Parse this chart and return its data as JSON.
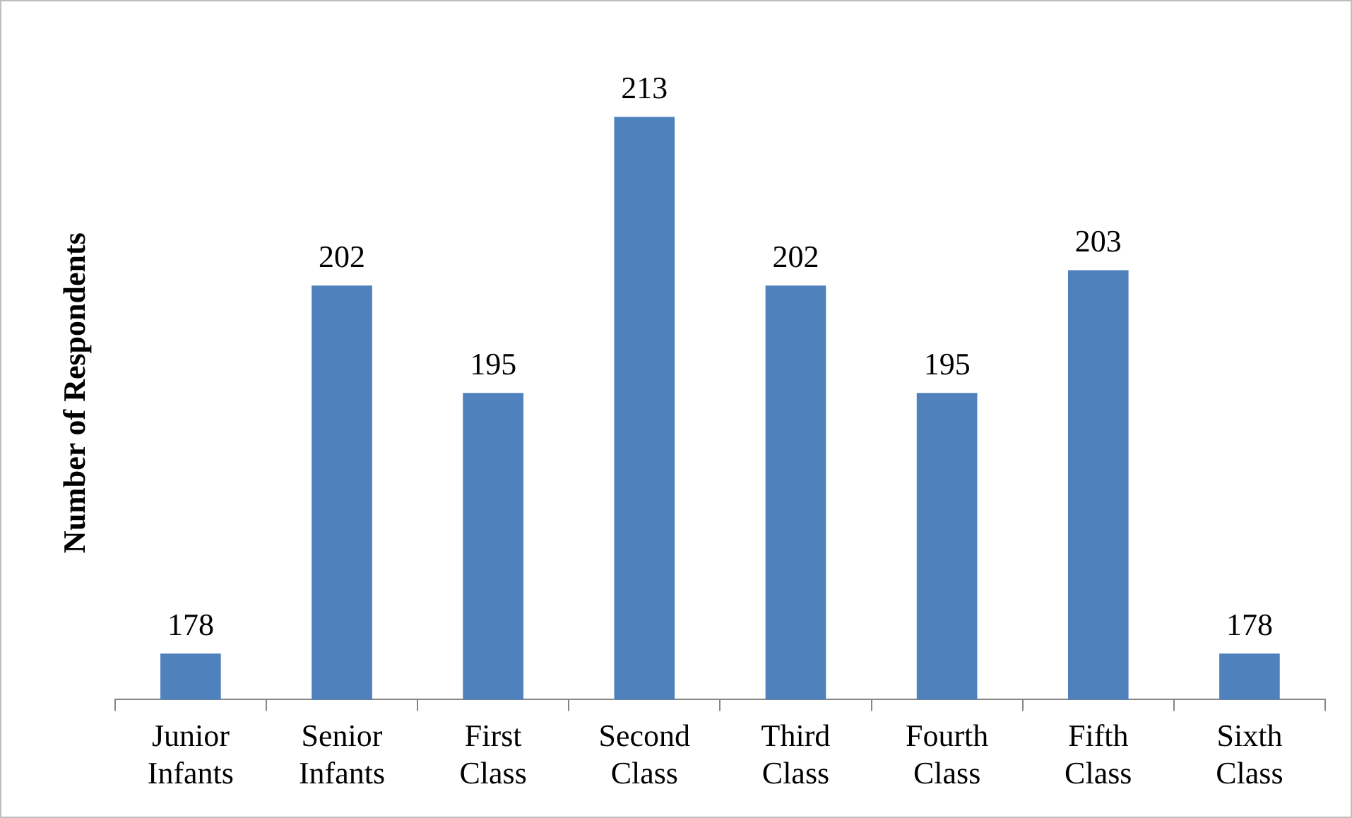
{
  "chart_data": {
    "type": "bar",
    "ylabel": "Number of Respondents",
    "categories": [
      "Junior Infants",
      "Senior Infants",
      "First Class",
      "Second Class",
      "Third Class",
      "Fourth Class",
      "Fifth Class",
      "Sixth Class"
    ],
    "values": [
      178,
      202,
      195,
      213,
      202,
      195,
      203,
      178
    ],
    "color": "#4f81bd",
    "tick_labels": "x",
    "data_labels": true,
    "grid": false,
    "legend": false
  }
}
